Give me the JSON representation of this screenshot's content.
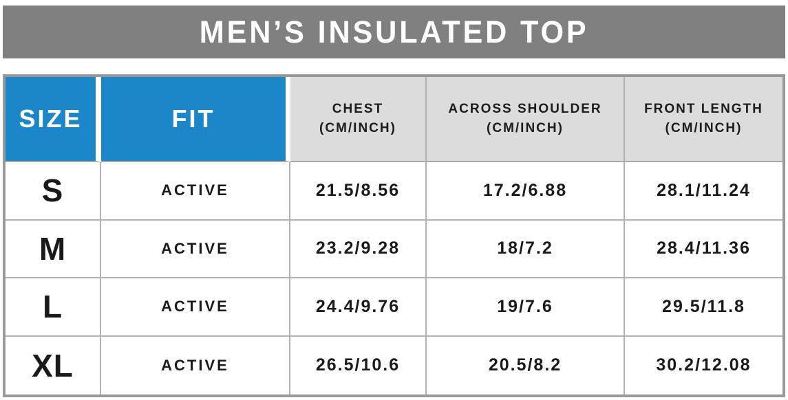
{
  "title": "MEN’S INSULATED TOP",
  "colors": {
    "title_bar_gray": "#808080",
    "accent_blue": "#1c87c8",
    "header_cell_gray": "#dcdcdc",
    "table_border_gray": "#999999",
    "gridline_gray": "#b2b2b2",
    "text_dark": "#1a1a1a",
    "text_white": "#ffffff"
  },
  "table": {
    "header": {
      "size": "SIZE",
      "fit": "FIT",
      "chest_l1": "CHEST",
      "chest_l2": "(CM/INCH)",
      "shoulder_l1": "ACROSS SHOULDER",
      "shoulder_l2": "(CM/INCH)",
      "front_l1": "FRONT LENGTH",
      "front_l2": "(CM/INCH)"
    },
    "rows": [
      {
        "size": "S",
        "fit": "ACTIVE",
        "chest": "21.5/8.56",
        "shoulder": "17.2/6.88",
        "front": "28.1/11.24"
      },
      {
        "size": "M",
        "fit": "ACTIVE",
        "chest": "23.2/9.28",
        "shoulder": "18/7.2",
        "front": "28.4/11.36"
      },
      {
        "size": "L",
        "fit": "ACTIVE",
        "chest": "24.4/9.76",
        "shoulder": "19/7.6",
        "front": "29.5/11.8"
      },
      {
        "size": "XL",
        "fit": "ACTIVE",
        "chest": "26.5/10.6",
        "shoulder": "20.5/8.2",
        "front": "30.2/12.08"
      }
    ]
  },
  "chart_data": {
    "type": "table",
    "title": "MEN’S INSULATED TOP",
    "columns": [
      "SIZE",
      "FIT",
      "CHEST (CM/INCH)",
      "ACROSS SHOULDER (CM/INCH)",
      "FRONT LENGTH (CM/INCH)"
    ],
    "rows": [
      [
        "S",
        "ACTIVE",
        "21.5/8.56",
        "17.2/6.88",
        "28.1/11.24"
      ],
      [
        "M",
        "ACTIVE",
        "23.2/9.28",
        "18/7.2",
        "28.4/11.36"
      ],
      [
        "L",
        "ACTIVE",
        "24.4/9.76",
        "19/7.6",
        "29.5/11.8"
      ],
      [
        "XL",
        "ACTIVE",
        "26.5/10.6",
        "20.5/8.2",
        "30.2/12.08"
      ]
    ]
  }
}
